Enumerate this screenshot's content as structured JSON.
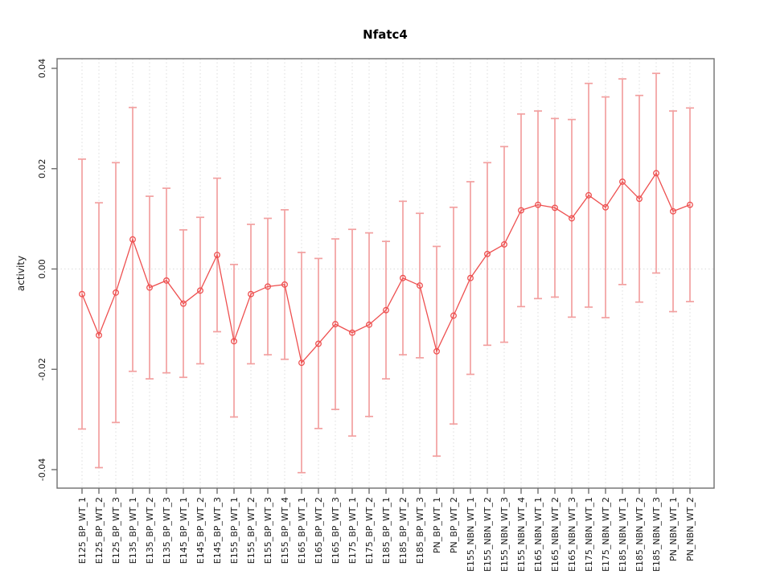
{
  "chart_data": {
    "type": "line",
    "title": "Nfatc4",
    "xlabel": "",
    "ylabel": "activity",
    "ylim": [
      -0.0437,
      0.0428
    ],
    "grid": "dotted vertical line per category plus dotted horizontal line at zero",
    "legend": "none",
    "point_style": "open circles with connecting segments and symmetric error bars",
    "colors": {
      "series": "#ee5050",
      "error_bar": "#f2a0a0",
      "gridline": "#dcdcdc",
      "axis": "#6e6e6e",
      "text": "#1a1a1a",
      "background": "#ffffff"
    },
    "yticks": {
      "labels": [
        "0.04",
        "0.02",
        "0.00",
        "-0.02",
        "-0.04"
      ],
      "values": [
        0.04,
        0.02,
        0.0,
        -0.02,
        -0.04
      ]
    },
    "categories": [
      "E125_BP_WT_1",
      "E125_BP_WT_2",
      "E125_BP_WT_3",
      "E135_BP_WT_1",
      "E135_BP_WT_2",
      "E135_BP_WT_3",
      "E145_BP_WT_1",
      "E145_BP_WT_2",
      "E145_BP_WT_3",
      "E155_BP_WT_1",
      "E155_BP_WT_2",
      "E155_BP_WT_3",
      "E155_BP_WT_4",
      "E165_BP_WT_1",
      "E165_BP_WT_2",
      "E165_BP_WT_3",
      "E175_BP_WT_1",
      "E175_BP_WT_2",
      "E185_BP_WT_1",
      "E185_BP_WT_2",
      "E185_BP_WT_3",
      "PN_BP_WT_1",
      "PN_BP_WT_2",
      "E155_NBN_WT_1",
      "E155_NBN_WT_2",
      "E155_NBN_WT_3",
      "E155_NBN_WT_4",
      "E165_NBN_WT_1",
      "E165_NBN_WT_2",
      "E165_NBN_WT_3",
      "E175_NBN_WT_1",
      "E175_NBN_WT_2",
      "E185_NBN_WT_1",
      "E185_NBN_WT_2",
      "E185_NBN_WT_3",
      "PN_NBN_WT_1",
      "PN_NBN_WT_2"
    ],
    "values": [
      -0.005,
      -0.0132,
      -0.0047,
      0.0059,
      -0.0037,
      -0.0023,
      -0.0069,
      -0.0043,
      0.0028,
      -0.0144,
      -0.005,
      -0.0035,
      -0.0031,
      -0.0187,
      -0.0149,
      -0.011,
      -0.0127,
      -0.0111,
      -0.0082,
      -0.0018,
      -0.0033,
      -0.0164,
      -0.0093,
      -0.0018,
      0.003,
      0.0049,
      0.0117,
      0.0128,
      0.0122,
      0.0101,
      0.0147,
      0.0123,
      0.0174,
      0.014,
      0.0191,
      0.0115,
      0.0128
    ],
    "error_upper": [
      0.0219,
      0.0132,
      0.0212,
      0.0322,
      0.0145,
      0.0161,
      0.0078,
      0.0103,
      0.0181,
      0.0009,
      0.0089,
      0.0101,
      0.0118,
      0.0033,
      0.0021,
      0.006,
      0.0079,
      0.0072,
      0.0055,
      0.0135,
      0.0111,
      0.0045,
      0.0123,
      0.0174,
      0.0212,
      0.0244,
      0.0309,
      0.0315,
      0.03,
      0.0298,
      0.037,
      0.0343,
      0.0379,
      0.0346,
      0.039,
      0.0315,
      0.0321
    ],
    "error_lower": [
      -0.0319,
      -0.0396,
      -0.0306,
      -0.0204,
      -0.0219,
      -0.0207,
      -0.0216,
      -0.0189,
      -0.0125,
      -0.0295,
      -0.0189,
      -0.0171,
      -0.018,
      -0.0406,
      -0.0318,
      -0.028,
      -0.0333,
      -0.0294,
      -0.0219,
      -0.0171,
      -0.0177,
      -0.0373,
      -0.0309,
      -0.021,
      -0.0152,
      -0.0146,
      -0.0075,
      -0.0059,
      -0.0056,
      -0.0096,
      -0.0076,
      -0.0097,
      -0.0031,
      -0.0066,
      -0.0008,
      -0.0085,
      -0.0065
    ]
  }
}
